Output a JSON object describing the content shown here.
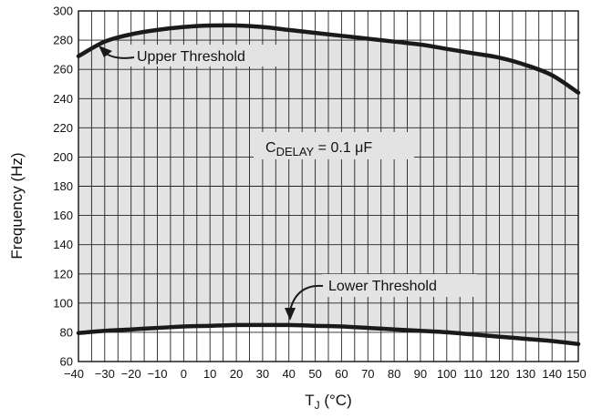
{
  "chart_data": {
    "type": "area",
    "xlabel": "T",
    "xlabel_sub": "J",
    "xlabel_unit": " (°C)",
    "ylabel": "Frequency (Hz)",
    "xlim": [
      -40,
      150
    ],
    "ylim": [
      60,
      300
    ],
    "x_ticks": [
      -40,
      -30,
      -20,
      -10,
      0,
      10,
      20,
      30,
      40,
      50,
      60,
      70,
      80,
      90,
      100,
      110,
      120,
      130,
      140,
      150
    ],
    "x_tick_labels": [
      "−40",
      "−30",
      "−20",
      "−10",
      "0",
      "10",
      "20",
      "30",
      "40",
      "50",
      "60",
      "70",
      "80",
      "90",
      "100",
      "110",
      "120",
      "130",
      "140",
      "150"
    ],
    "y_ticks": [
      60,
      80,
      100,
      120,
      140,
      160,
      180,
      200,
      220,
      240,
      260,
      280,
      300
    ],
    "y_tick_labels": [
      "60",
      "80",
      "100",
      "120",
      "140",
      "160",
      "180",
      "200",
      "220",
      "240",
      "260",
      "280",
      "300"
    ],
    "x_minor_step": 5,
    "grid": true,
    "fill_color": "#e3e3e3",
    "line_color": "#1a1a1a",
    "series": [
      {
        "name": "Upper Threshold",
        "x": [
          -40,
          -30,
          -20,
          -10,
          0,
          10,
          20,
          30,
          40,
          50,
          60,
          70,
          80,
          90,
          100,
          110,
          120,
          130,
          140,
          150
        ],
        "y": [
          269,
          279,
          284,
          287,
          289,
          290,
          290,
          289,
          287,
          285,
          283,
          281,
          279,
          277,
          274,
          271,
          268,
          263,
          256,
          244
        ]
      },
      {
        "name": "Lower Threshold",
        "x": [
          -40,
          -30,
          -20,
          -10,
          0,
          10,
          20,
          30,
          40,
          50,
          60,
          70,
          80,
          90,
          100,
          110,
          120,
          130,
          140,
          150
        ],
        "y": [
          79.5,
          81,
          82,
          83,
          84,
          84.5,
          85,
          85,
          85,
          84.5,
          84,
          83,
          82,
          81,
          80,
          78.5,
          77,
          75.5,
          74,
          72
        ]
      }
    ],
    "annotations": {
      "upper_label": "Upper Threshold",
      "lower_label": "Lower Threshold",
      "cdelay_main": "C",
      "cdelay_sub": "DELAY",
      "cdelay_value": " = 0.1 μF"
    }
  }
}
